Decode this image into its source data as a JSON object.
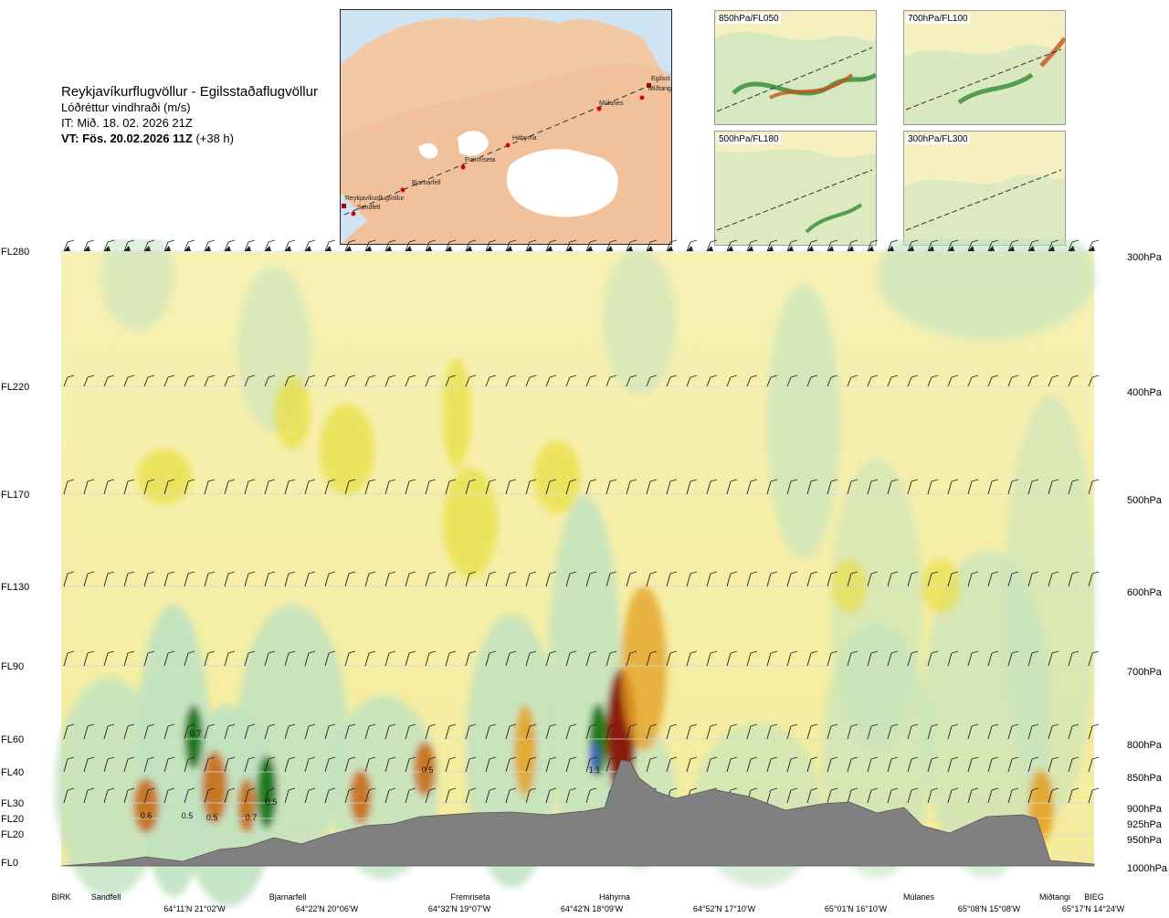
{
  "header": {
    "title": "Reykjavíkurflugvöllur - Egilsstaðaflugvöllur",
    "subtitle": "Lóðréttur vindhraði (m/s)",
    "it": "IT: Mið. 18. 02. 2026 21Z",
    "vt_bold": "VT: Fös. 20.02.2026 11Z",
    "vt_lead": "(+38 h)"
  },
  "map": {
    "route_stations": [
      "Reykjavíkurflugvöllur",
      "Sandfell",
      "Bjarnarfell",
      "Fremriseta",
      "Háhyrna",
      "Múlanes",
      "Egilsst",
      "Miðtangi"
    ]
  },
  "minimaps": [
    {
      "label": "850hPa/FL050"
    },
    {
      "label": "700hPa/FL100"
    },
    {
      "label": "500hPa/FL180"
    },
    {
      "label": "300hPa/FL300"
    }
  ],
  "chart_data": {
    "type": "heatmap",
    "title": "Lóðréttur vindhraði (m/s)",
    "levels": [
      {
        "fl": "FL280",
        "hpa": "300hPa"
      },
      {
        "fl": "FL220",
        "hpa": "400hPa"
      },
      {
        "fl": "FL170",
        "hpa": "500hPa"
      },
      {
        "fl": "FL130",
        "hpa": "600hPa"
      },
      {
        "fl": "FL90",
        "hpa": "700hPa"
      },
      {
        "fl": "FL60",
        "hpa": "800hPa"
      },
      {
        "fl": "FL40",
        "hpa": "850hPa"
      },
      {
        "fl": "FL30",
        "hpa": "900hPa"
      },
      {
        "fl": "FL20",
        "hpa": "925hPa"
      },
      {
        "fl": "FL20",
        "hpa": "950hPa"
      },
      {
        "fl": "FL0",
        "hpa": "1000hPa"
      }
    ],
    "stations": [
      "BIRK",
      "Sandfell",
      "Bjarnarfell",
      "Fremriseta",
      "Háhyrna",
      "Múlanes",
      "Miðtangi",
      "BIEG"
    ],
    "coordinates": [
      "64°11'N 21°02'W",
      "64°22'N 20°06'W",
      "64°32'N 19°07'W",
      "64°42'N 18°09'W",
      "64°52'N 17°10'W",
      "65°01'N 16°10'W",
      "65°08'N 15°08'W",
      "65°17'N 14°24'W"
    ],
    "annotations": [
      "0.6",
      "0.5",
      "0.5",
      "0.7",
      "0.5",
      "0.5",
      "1.1",
      "0.7"
    ],
    "colors": {
      "positive": "#f5ee9a",
      "strong_positive": "#8b1a0a",
      "negative": "#bfe2c0",
      "strong_negative": "#1d7a1d",
      "terrain": "#808080"
    }
  }
}
